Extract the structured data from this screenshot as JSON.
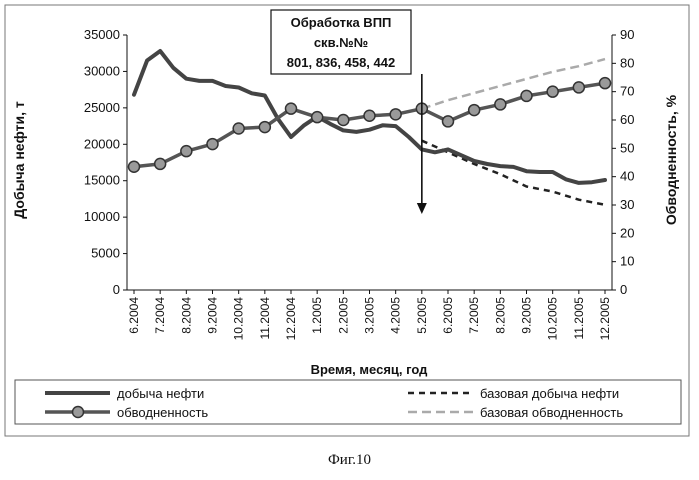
{
  "figure_caption": "Фиг.10",
  "chart_data": {
    "type": "line",
    "title": "",
    "annotation": [
      "Обработка ВПП",
      "скв.№№",
      "801, 836, 458, 442"
    ],
    "xlabel": "Время, месяц, год",
    "ylabel": "Добыча нефти, т",
    "y2label": "Обводненность, %",
    "ylim": [
      0,
      35000
    ],
    "y2lim": [
      0,
      90
    ],
    "yticks": [
      "0",
      "5000",
      "10000",
      "15000",
      "20000",
      "25000",
      "30000",
      "35000"
    ],
    "y2ticks": [
      "0",
      "10",
      "20",
      "30",
      "40",
      "50",
      "60",
      "70",
      "80",
      "90"
    ],
    "categories": [
      "6.2004",
      "7.2004",
      "8.2004",
      "9.2004",
      "10.2004",
      "11.2004",
      "12.2004",
      "1.2005",
      "2.2005",
      "3.2005",
      "4.2005",
      "5.2005",
      "6.2005",
      "7.2005",
      "8.2005",
      "9.2005",
      "10.2005",
      "11.2005",
      "12.2005"
    ],
    "annotation_at": "5.2005",
    "grid": false,
    "legend_position": "bottom",
    "series": [
      {
        "name": "добыча нефти",
        "axis": "left",
        "style": "solid-thick",
        "color": "#444444",
        "x": [
          0,
          0.5,
          1,
          1.5,
          2,
          2.5,
          3,
          3.5,
          4,
          4.5,
          5,
          5.5,
          6,
          6.5,
          7,
          7.5,
          8,
          8.5,
          9,
          9.5,
          10,
          10.5,
          11,
          11.5,
          12,
          12.5,
          13,
          13.5,
          14,
          14.5,
          15,
          15.5,
          16,
          16.5,
          17,
          17.5,
          18
        ],
        "values": [
          26800,
          31500,
          32800,
          30500,
          29000,
          28700,
          28700,
          28000,
          27800,
          27000,
          26700,
          23500,
          21000,
          22600,
          23800,
          22800,
          21900,
          21700,
          22000,
          22600,
          22500,
          21000,
          19300,
          18900,
          19300,
          18500,
          17700,
          17300,
          17000,
          16900,
          16300,
          16200,
          16200,
          15200,
          14700,
          14800,
          15100
        ]
      },
      {
        "name": "базовая добыча нефти",
        "axis": "left",
        "style": "dashed",
        "color": "#222222",
        "x": [
          11,
          12,
          13,
          14,
          15,
          16,
          17,
          18
        ],
        "values": [
          20500,
          18900,
          17300,
          15900,
          14200,
          13500,
          12400,
          11700
        ]
      },
      {
        "name": "обводненность",
        "axis": "right",
        "style": "solid-markers",
        "color": "#555555",
        "x": [
          0,
          1,
          2,
          3,
          4,
          5,
          6,
          7,
          8,
          9,
          10,
          11,
          12,
          13,
          14,
          15,
          16,
          17,
          18
        ],
        "values": [
          43.5,
          44.5,
          49,
          51.5,
          57,
          57.5,
          64,
          61,
          60,
          61.5,
          62,
          64,
          59.5,
          63.5,
          65.5,
          68.5,
          70,
          71.5,
          73
        ]
      },
      {
        "name": "базовая обводненность",
        "axis": "right",
        "style": "dashed-light",
        "color": "#aaaaaa",
        "x": [
          11,
          12,
          13,
          14,
          15,
          16,
          17,
          18
        ],
        "values": [
          64,
          67,
          69.5,
          72,
          74.5,
          77,
          79,
          81.5
        ]
      }
    ]
  }
}
